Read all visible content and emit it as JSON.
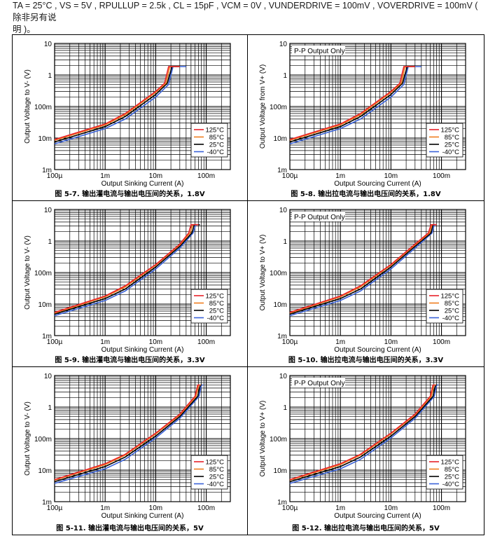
{
  "header": {
    "line1": "TA = 25°C , VS = 5V , RPULLUP = 2.5k , CL = 15pF , VCM = 0V , VUNDERDRIVE = 100mV , VOVERDRIVE = 100mV ( 除非另有说",
    "line2": "明 )。"
  },
  "legend": [
    "125°C",
    "85°C",
    "25°C",
    "-40°C"
  ],
  "legend_colors": [
    "#e8222a",
    "#f07d1e",
    "#000000",
    "#3a62d8"
  ],
  "x_ticks": [
    "100µ",
    "1m",
    "10m",
    "100m"
  ],
  "y_ticks": [
    "10",
    "1",
    "100m",
    "10m",
    "1m"
  ],
  "chart_data": [
    {
      "type": "line",
      "title": "图 5-7. 输出灌电流与输出电压间的关系，1.8V",
      "inset": "",
      "xlabel": "Output Sinking Current (A)",
      "ylabel": "Output Voltage to V- (V)",
      "xscale": "log",
      "yscale": "log",
      "xlim": [
        0.0001,
        0.3
      ],
      "ylim": [
        0.001,
        10
      ],
      "series": [
        {
          "name": "125°C",
          "x": [
            0.0001,
            0.001,
            0.0025,
            0.01,
            0.015,
            0.018,
            0.02,
            0.03
          ],
          "y": [
            0.009,
            0.028,
            0.06,
            0.3,
            0.55,
            1.85,
            1.85,
            1.85
          ]
        },
        {
          "name": "85°C",
          "x": [
            0.0001,
            0.001,
            0.0025,
            0.01,
            0.016,
            0.019,
            0.021,
            0.03
          ],
          "y": [
            0.0085,
            0.026,
            0.055,
            0.28,
            0.55,
            1.85,
            1.85,
            1.85
          ]
        },
        {
          "name": "25°C",
          "x": [
            0.0001,
            0.001,
            0.0025,
            0.01,
            0.017,
            0.021,
            0.023,
            0.03
          ],
          "y": [
            0.0075,
            0.023,
            0.048,
            0.24,
            0.55,
            1.85,
            1.85,
            1.85
          ]
        },
        {
          "name": "-40°C",
          "x": [
            0.0001,
            0.001,
            0.0025,
            0.01,
            0.018,
            0.022,
            0.024,
            0.04
          ],
          "y": [
            0.0065,
            0.02,
            0.04,
            0.2,
            0.5,
            1.85,
            1.85,
            1.85
          ]
        }
      ]
    },
    {
      "type": "line",
      "title": "图 5-8. 输出拉电流与输出电压间的关系，1.8V",
      "inset": "P-P Output Only",
      "xlabel": "Output Sourcing Current (A)",
      "ylabel": "Output Voltage from V+ (V)",
      "xscale": "log",
      "yscale": "log",
      "xlim": [
        0.0001,
        0.3
      ],
      "ylim": [
        0.001,
        10
      ],
      "series": [
        {
          "name": "125°C",
          "x": [
            0.0001,
            0.001,
            0.0025,
            0.01,
            0.015,
            0.018,
            0.02,
            0.03
          ],
          "y": [
            0.009,
            0.028,
            0.06,
            0.3,
            0.55,
            1.85,
            1.85,
            1.85
          ]
        },
        {
          "name": "85°C",
          "x": [
            0.0001,
            0.001,
            0.0025,
            0.01,
            0.016,
            0.019,
            0.021,
            0.03
          ],
          "y": [
            0.0085,
            0.026,
            0.055,
            0.28,
            0.55,
            1.85,
            1.85,
            1.85
          ]
        },
        {
          "name": "25°C",
          "x": [
            0.0001,
            0.001,
            0.0025,
            0.01,
            0.017,
            0.021,
            0.023,
            0.03
          ],
          "y": [
            0.0075,
            0.023,
            0.048,
            0.24,
            0.55,
            1.85,
            1.85,
            1.85
          ]
        },
        {
          "name": "-40°C",
          "x": [
            0.0001,
            0.001,
            0.0025,
            0.01,
            0.018,
            0.022,
            0.024,
            0.04
          ],
          "y": [
            0.0065,
            0.02,
            0.04,
            0.2,
            0.5,
            1.85,
            1.85,
            1.85
          ]
        }
      ]
    },
    {
      "type": "line",
      "title": "图 5-9. 输出灌电流与输出电压间的关系，3.3V",
      "inset": "",
      "xlabel": "Output Sinking Current (A)",
      "ylabel": "Output Voltage to V- (V)",
      "xscale": "log",
      "yscale": "log",
      "xlim": [
        0.0001,
        0.3
      ],
      "ylim": [
        0.001,
        10
      ],
      "series": [
        {
          "name": "125°C",
          "x": [
            0.0001,
            0.001,
            0.0025,
            0.01,
            0.03,
            0.045,
            0.05,
            0.07
          ],
          "y": [
            0.0055,
            0.018,
            0.038,
            0.18,
            0.8,
            1.8,
            3.3,
            3.3
          ]
        },
        {
          "name": "85°C",
          "x": [
            0.0001,
            0.001,
            0.0025,
            0.01,
            0.03,
            0.048,
            0.054,
            0.07
          ],
          "y": [
            0.0052,
            0.017,
            0.035,
            0.17,
            0.75,
            1.8,
            3.3,
            3.3
          ]
        },
        {
          "name": "25°C",
          "x": [
            0.0001,
            0.001,
            0.0025,
            0.01,
            0.03,
            0.052,
            0.058,
            0.075
          ],
          "y": [
            0.0048,
            0.015,
            0.03,
            0.15,
            0.68,
            1.8,
            3.3,
            3.3
          ]
        },
        {
          "name": "-40°C",
          "x": [
            0.0001,
            0.001,
            0.0025,
            0.01,
            0.03,
            0.055,
            0.062,
            0.075
          ],
          "y": [
            0.0043,
            0.013,
            0.026,
            0.13,
            0.6,
            1.8,
            3.3,
            3.3
          ]
        }
      ]
    },
    {
      "type": "line",
      "title": "图 5-10. 输出拉电流与输出电压间的关系，3.3V",
      "inset": "P-P Output Only",
      "xlabel": "Output Sourcing Current (A)",
      "ylabel": "Output Voltage to V+ (V)",
      "xscale": "log",
      "yscale": "log",
      "xlim": [
        0.0001,
        0.3
      ],
      "ylim": [
        0.001,
        10
      ],
      "series": [
        {
          "name": "125°C",
          "x": [
            0.0001,
            0.001,
            0.0025,
            0.01,
            0.03,
            0.055,
            0.062,
            0.08
          ],
          "y": [
            0.0055,
            0.018,
            0.038,
            0.18,
            0.8,
            1.8,
            3.3,
            3.3
          ]
        },
        {
          "name": "85°C",
          "x": [
            0.0001,
            0.001,
            0.0025,
            0.01,
            0.03,
            0.058,
            0.065,
            0.08
          ],
          "y": [
            0.0052,
            0.017,
            0.035,
            0.17,
            0.75,
            1.8,
            3.3,
            3.3
          ]
        },
        {
          "name": "25°C",
          "x": [
            0.0001,
            0.001,
            0.0025,
            0.01,
            0.03,
            0.062,
            0.068,
            0.08
          ],
          "y": [
            0.0048,
            0.015,
            0.03,
            0.15,
            0.68,
            1.8,
            3.3,
            3.3
          ]
        },
        {
          "name": "-40°C",
          "x": [
            0.0001,
            0.001,
            0.0025,
            0.01,
            0.03,
            0.065,
            0.072,
            0.08
          ],
          "y": [
            0.0043,
            0.013,
            0.026,
            0.13,
            0.6,
            1.8,
            3.3,
            3.3
          ]
        }
      ]
    },
    {
      "type": "line",
      "title": "图 5-11. 输出灌电流与输出电压间的关系，5V",
      "inset": "",
      "xlabel": "Output Sinking Current (A)",
      "ylabel": "Output Voltage to V- (V)",
      "xscale": "log",
      "yscale": "log",
      "xlim": [
        0.0001,
        0.3
      ],
      "ylim": [
        0.001,
        10
      ],
      "series": [
        {
          "name": "125°C",
          "x": [
            0.0001,
            0.001,
            0.0025,
            0.01,
            0.03,
            0.06,
            0.068,
            0.075
          ],
          "y": [
            0.005,
            0.016,
            0.032,
            0.15,
            0.6,
            2.2,
            5,
            5
          ]
        },
        {
          "name": "85°C",
          "x": [
            0.0001,
            0.001,
            0.0025,
            0.01,
            0.03,
            0.063,
            0.071,
            0.078
          ],
          "y": [
            0.0048,
            0.015,
            0.03,
            0.14,
            0.56,
            2.2,
            5,
            5
          ]
        },
        {
          "name": "25°C",
          "x": [
            0.0001,
            0.001,
            0.0025,
            0.01,
            0.03,
            0.068,
            0.076,
            0.082
          ],
          "y": [
            0.0043,
            0.013,
            0.026,
            0.12,
            0.5,
            2.2,
            5,
            5
          ]
        },
        {
          "name": "-40°C",
          "x": [
            0.0001,
            0.001,
            0.0025,
            0.01,
            0.03,
            0.072,
            0.08,
            0.088
          ],
          "y": [
            0.0038,
            0.011,
            0.022,
            0.105,
            0.44,
            2.2,
            5,
            5
          ]
        }
      ]
    },
    {
      "type": "line",
      "title": "图 5-12. 输出拉电流与输出电压间的关系，5V",
      "inset": "P-P Output Only",
      "xlabel": "Output Sourcing Current (A)",
      "ylabel": "Output Voltage to V+ (V)",
      "xscale": "log",
      "yscale": "log",
      "xlim": [
        0.0001,
        0.3
      ],
      "ylim": [
        0.001,
        10
      ],
      "series": [
        {
          "name": "125°C",
          "x": [
            0.0001,
            0.001,
            0.0025,
            0.01,
            0.03,
            0.06,
            0.068,
            0.075
          ],
          "y": [
            0.005,
            0.016,
            0.032,
            0.15,
            0.6,
            2.2,
            5,
            5
          ]
        },
        {
          "name": "85°C",
          "x": [
            0.0001,
            0.001,
            0.0025,
            0.01,
            0.03,
            0.063,
            0.071,
            0.078
          ],
          "y": [
            0.0048,
            0.015,
            0.03,
            0.14,
            0.56,
            2.2,
            5,
            5
          ]
        },
        {
          "name": "25°C",
          "x": [
            0.0001,
            0.001,
            0.0025,
            0.01,
            0.03,
            0.068,
            0.076,
            0.082
          ],
          "y": [
            0.0043,
            0.013,
            0.026,
            0.12,
            0.5,
            2.2,
            5,
            5
          ]
        },
        {
          "name": "-40°C",
          "x": [
            0.0001,
            0.001,
            0.0025,
            0.01,
            0.03,
            0.072,
            0.08,
            0.088
          ],
          "y": [
            0.0038,
            0.011,
            0.022,
            0.105,
            0.44,
            2.2,
            5,
            5
          ]
        }
      ]
    }
  ]
}
